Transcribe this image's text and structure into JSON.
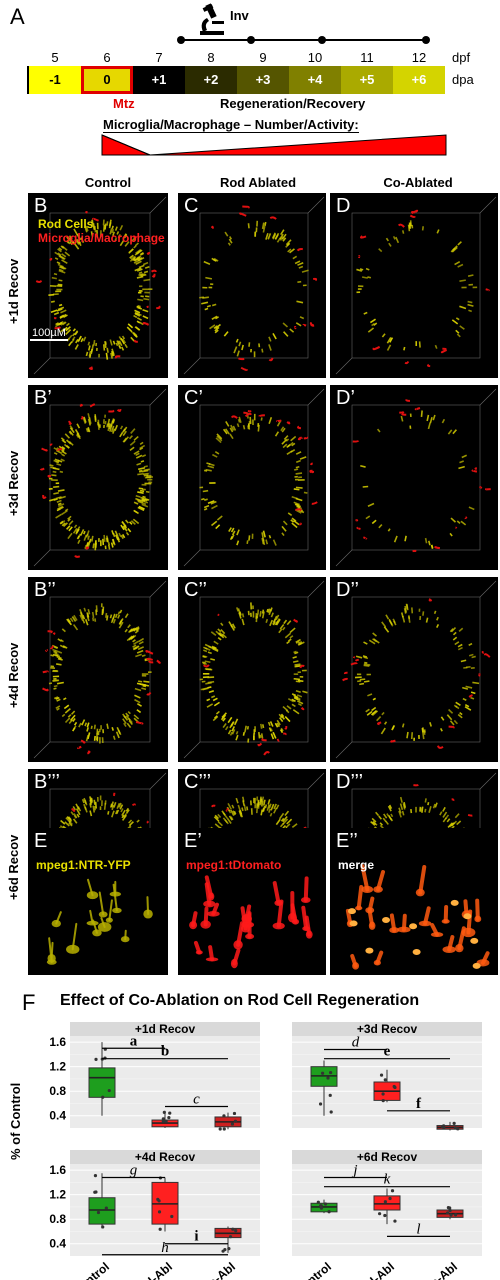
{
  "panelA": {
    "label": "A",
    "inv_label": "Inv",
    "dpf_label": "dpf",
    "dpa_label": "dpa",
    "dpf_ticks": [
      "5",
      "6",
      "7",
      "8",
      "9",
      "10",
      "11",
      "12"
    ],
    "dpa_cells": [
      {
        "text": "-1",
        "bg": "#ffff00",
        "fg": "#000"
      },
      {
        "text": "0",
        "bg": "#e6d800",
        "fg": "#000"
      },
      {
        "text": "+1",
        "bg": "#000000",
        "fg": "#fff"
      },
      {
        "text": "+2",
        "bg": "#2b2b00",
        "fg": "#fff"
      },
      {
        "text": "+3",
        "bg": "#555500",
        "fg": "#fff"
      },
      {
        "text": "+4",
        "bg": "#808000",
        "fg": "#fff"
      },
      {
        "text": "+5",
        "bg": "#aaaa00",
        "fg": "#fff"
      },
      {
        "text": "+6",
        "bg": "#d4d400",
        "fg": "#fff"
      }
    ],
    "mtz_label": "Mtz",
    "regen_label": "Regeneration/Recovery",
    "micro_label": "Microglia/Macrophage – Number/Activity:"
  },
  "columns": [
    "Control",
    "Rod Ablated",
    "Co-Ablated"
  ],
  "rows": [
    {
      "row_label": "+1d Recov",
      "panels": [
        "B",
        "C",
        "D"
      ]
    },
    {
      "row_label": "+3d Recov",
      "panels": [
        "B’",
        "C’",
        "D’"
      ]
    },
    {
      "row_label": "+4d Recov",
      "panels": [
        "B’’",
        "C’’",
        "D’’"
      ]
    },
    {
      "row_label": "+6d Recov",
      "panels": [
        "B’’’",
        "C’’’",
        "D’’’"
      ]
    }
  ],
  "legend": {
    "rod": "Rod Cells",
    "micro": "Microglia/Macrophage",
    "scale": "100µM"
  },
  "rowE": [
    {
      "panel": "E",
      "caption": "mpeg1:NTR-YFP",
      "color": "#e8e000"
    },
    {
      "panel": "E’",
      "caption": "mpeg1:tDtomato",
      "color": "#ff2020"
    },
    {
      "panel": "E’’",
      "caption": "merge",
      "color": "#ffffff"
    }
  ],
  "panelF": {
    "label": "F",
    "title": "Effect of Co-Ablation on Rod Cell Regeneration",
    "ylabel": "% of Control",
    "yticks": [
      "1.6",
      "1.2",
      "0.8",
      "0.4"
    ],
    "xticks": [
      "Control",
      "Rod-Abl",
      "Co-Abl"
    ]
  },
  "chart_data": {
    "type": "box",
    "ylabel": "% of Control",
    "categories": [
      "Control",
      "Rod-Abl",
      "Co-Abl"
    ],
    "ylim": [
      0.2,
      1.7
    ],
    "colors": [
      "#1e9e1e",
      "#ff2020",
      "#cc2020"
    ],
    "facets": [
      {
        "title": "+1d Recov",
        "boxes": [
          {
            "q1": 0.7,
            "median": 1.02,
            "q3": 1.18,
            "min": 0.4,
            "max": 1.6
          },
          {
            "q1": 0.22,
            "median": 0.28,
            "q3": 0.33,
            "min": 0.2,
            "max": 0.48
          },
          {
            "q1": 0.22,
            "median": 0.3,
            "q3": 0.38,
            "min": 0.18,
            "max": 0.45
          }
        ],
        "sig": [
          {
            "l": "a",
            "a": 0,
            "b": 1,
            "y": 1.5,
            "italic": false
          },
          {
            "l": "b",
            "a": 0,
            "b": 2,
            "y": 1.33,
            "italic": false
          },
          {
            "l": "c",
            "a": 1,
            "b": 2,
            "y": 0.55,
            "italic": true
          }
        ]
      },
      {
        "title": "+3d Recov",
        "boxes": [
          {
            "q1": 0.88,
            "median": 1.05,
            "q3": 1.2,
            "min": 0.4,
            "max": 1.3
          },
          {
            "q1": 0.65,
            "median": 0.8,
            "q3": 0.95,
            "min": 0.62,
            "max": 1.15
          },
          {
            "q1": 0.18,
            "median": 0.21,
            "q3": 0.24,
            "min": 0.16,
            "max": 0.3
          }
        ],
        "sig": [
          {
            "l": "d",
            "a": 0,
            "b": 1,
            "y": 1.48,
            "italic": true
          },
          {
            "l": "e",
            "a": 0,
            "b": 2,
            "y": 1.33,
            "italic": false
          },
          {
            "l": "f",
            "a": 1,
            "b": 2,
            "y": 0.48,
            "italic": false
          }
        ]
      },
      {
        "title": "+4d Recov",
        "boxes": [
          {
            "q1": 0.72,
            "median": 0.95,
            "q3": 1.15,
            "min": 0.65,
            "max": 1.55
          },
          {
            "q1": 0.72,
            "median": 1.05,
            "q3": 1.4,
            "min": 0.6,
            "max": 1.48
          },
          {
            "q1": 0.5,
            "median": 0.57,
            "q3": 0.65,
            "min": 0.25,
            "max": 0.68
          }
        ],
        "sig": [
          {
            "l": "g",
            "a": 0,
            "b": 1,
            "y": 1.48,
            "italic": true
          },
          {
            "l": "i",
            "a": 1,
            "b": 2,
            "y": 0.4,
            "italic": false
          },
          {
            "l": "h",
            "a": 0,
            "b": 2,
            "y": 0.22,
            "italic": true
          }
        ]
      },
      {
        "title": "+6d Recov",
        "boxes": [
          {
            "q1": 0.92,
            "median": 1.0,
            "q3": 1.06,
            "min": 0.9,
            "max": 1.12
          },
          {
            "q1": 0.95,
            "median": 1.05,
            "q3": 1.18,
            "min": 0.72,
            "max": 1.3
          },
          {
            "q1": 0.83,
            "median": 0.89,
            "q3": 0.95,
            "min": 0.8,
            "max": 1.0
          }
        ],
        "sig": [
          {
            "l": "j",
            "a": 0,
            "b": 1,
            "y": 1.48,
            "italic": true
          },
          {
            "l": "k",
            "a": 0,
            "b": 2,
            "y": 1.33,
            "italic": true
          },
          {
            "l": "l",
            "a": 1,
            "b": 2,
            "y": 0.52,
            "italic": true
          }
        ]
      }
    ]
  }
}
